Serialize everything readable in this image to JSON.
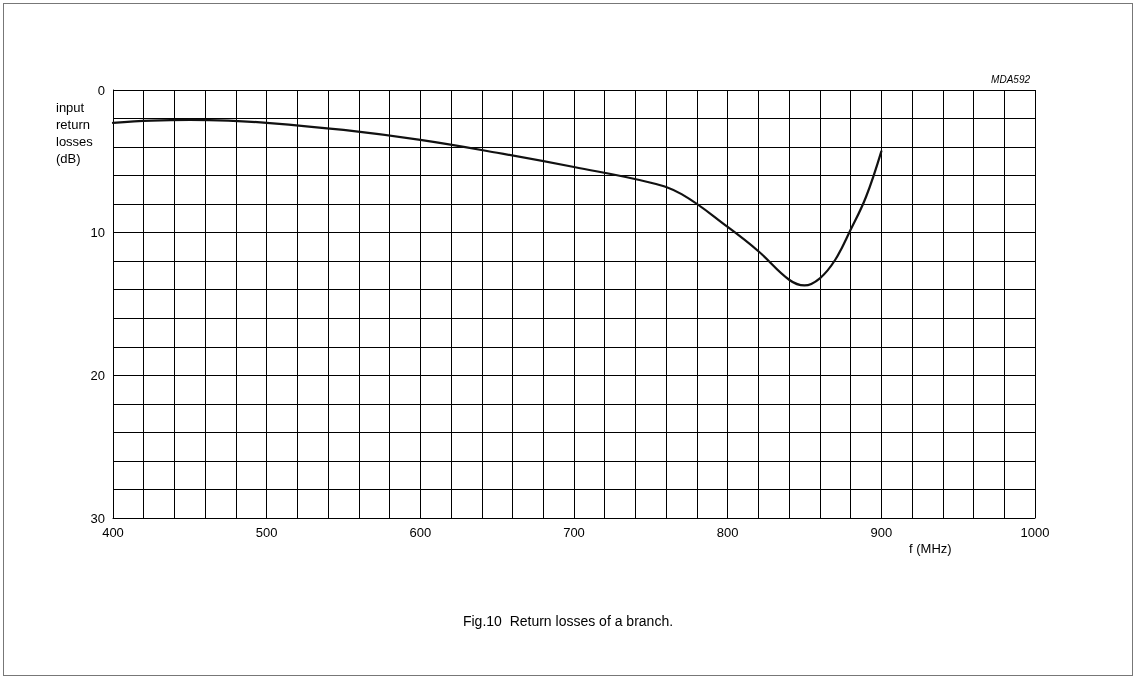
{
  "chart_data": {
    "type": "line",
    "title": "Fig.10  Return losses of a branch.",
    "xlabel": "f (MHz)",
    "ylabel": "input\nreturn\nlosses\n(dB)",
    "annotations": [
      "MDA592"
    ],
    "x": [
      400,
      425,
      450,
      475,
      500,
      550,
      600,
      650,
      700,
      750,
      770,
      800,
      820,
      840,
      850,
      860,
      870,
      880,
      890,
      900
    ],
    "series": [
      {
        "color": "#111111",
        "values": [
          2.3,
          2.15,
          2.1,
          2.15,
          2.3,
          2.8,
          3.5,
          4.4,
          5.4,
          6.5,
          7.3,
          9.6,
          11.3,
          13.3,
          13.7,
          13.2,
          11.9,
          9.8,
          7.5,
          4.3
        ]
      }
    ],
    "xlim": [
      400,
      1000
    ],
    "xticks": [
      400,
      {
        "value": 420,
        "label": null
      },
      {
        "value": 440,
        "label": null
      },
      {
        "value": 460,
        "label": null
      },
      {
        "value": 480,
        "label": null
      },
      500,
      {
        "value": 520,
        "label": null
      },
      {
        "value": 540,
        "label": null
      },
      {
        "value": 560,
        "label": null
      },
      {
        "value": 580,
        "label": null
      },
      600,
      {
        "value": 620,
        "label": null
      },
      {
        "value": 640,
        "label": null
      },
      {
        "value": 660,
        "label": null
      },
      {
        "value": 680,
        "label": null
      },
      700,
      {
        "value": 720,
        "label": null
      },
      {
        "value": 740,
        "label": null
      },
      {
        "value": 760,
        "label": null
      },
      {
        "value": 780,
        "label": null
      },
      800,
      {
        "value": 820,
        "label": null
      },
      {
        "value": 840,
        "label": null
      },
      {
        "value": 860,
        "label": null
      },
      {
        "value": 880,
        "label": null
      },
      900,
      {
        "value": 920,
        "label": null
      },
      {
        "value": 940,
        "label": null
      },
      {
        "value": 960,
        "label": null
      },
      {
        "value": 980,
        "label": null
      },
      1000
    ],
    "ylim": [
      30,
      0
    ],
    "yticks": [
      0,
      {
        "value": 2,
        "label": null
      },
      {
        "value": 4,
        "label": null
      },
      {
        "value": 6,
        "label": null
      },
      {
        "value": 8,
        "label": null
      },
      10,
      {
        "value": 12,
        "label": null
      },
      {
        "value": 14,
        "label": null
      },
      {
        "value": 16,
        "label": null
      },
      {
        "value": 18,
        "label": null
      },
      20,
      {
        "value": 22,
        "label": null
      },
      {
        "value": 24,
        "label": null
      },
      {
        "value": 26,
        "label": null
      },
      {
        "value": 28,
        "label": null
      },
      30
    ],
    "grid": true,
    "marker": "none",
    "line_style": "solid"
  }
}
